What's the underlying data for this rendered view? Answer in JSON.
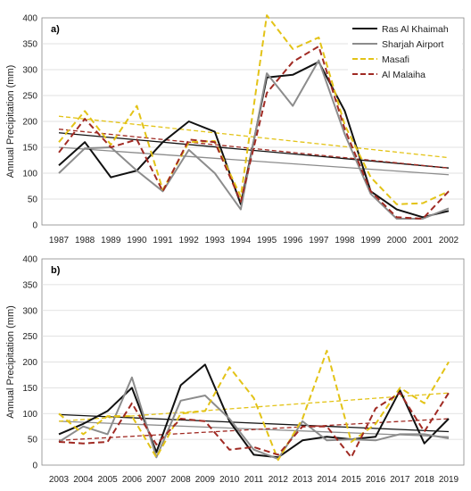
{
  "colors": {
    "Ras Al Khaimah": "#111111",
    "Sharjah Airport": "#8c8c8c",
    "Masafi": "#e3c317",
    "Al Malaiha": "#a02a23",
    "grid": "#d9d9d9",
    "axis": "#888888"
  },
  "styles": {
    "Ras Al Khaimah": "solid",
    "Sharjah Airport": "solid",
    "Masafi": "dashed",
    "Al Malaiha": "dashed"
  },
  "chart_data": [
    {
      "type": "line",
      "panel_label": "a)",
      "ylabel": "Annual Precipitation (mm)",
      "ylim": [
        0,
        400
      ],
      "yticks": [
        0,
        50,
        100,
        150,
        200,
        250,
        300,
        350,
        400
      ],
      "grid": true,
      "legend": "top-right",
      "categories": [
        "1987",
        "1988",
        "1989",
        "1990",
        "1991",
        "1992",
        "1993",
        "1994",
        "1995",
        "1996",
        "1997",
        "1998",
        "1999",
        "2000",
        "2001",
        "2002"
      ],
      "series": [
        {
          "name": "Ras Al Khaimah",
          "values": [
            115,
            160,
            92,
            105,
            160,
            200,
            180,
            40,
            285,
            290,
            315,
            220,
            65,
            30,
            15,
            27
          ],
          "trend": [
            178,
            110
          ]
        },
        {
          "name": "Sharjah Airport",
          "values": [
            100,
            148,
            150,
            105,
            65,
            145,
            100,
            30,
            293,
            230,
            318,
            175,
            60,
            12,
            12,
            32
          ],
          "trend": [
            150,
            97
          ]
        },
        {
          "name": "Masafi",
          "values": [
            160,
            220,
            155,
            230,
            68,
            160,
            162,
            55,
            405,
            340,
            362,
            193,
            92,
            40,
            42,
            65
          ],
          "trend": [
            210,
            130
          ]
        },
        {
          "name": "Al Malaiha",
          "values": [
            140,
            205,
            150,
            165,
            65,
            165,
            160,
            45,
            255,
            315,
            345,
            185,
            65,
            15,
            12,
            65
          ],
          "trend": [
            185,
            110
          ]
        }
      ]
    },
    {
      "type": "line",
      "panel_label": "b)",
      "ylabel": "Annual Precipitation (mm)",
      "ylim": [
        0,
        400
      ],
      "yticks": [
        0,
        50,
        100,
        150,
        200,
        250,
        300,
        350,
        400
      ],
      "grid": true,
      "categories": [
        "2003",
        "2004",
        "2005",
        "2006",
        "2007",
        "2008",
        "2009",
        "2010",
        "2011",
        "2012",
        "2013",
        "2014",
        "2015",
        "2016",
        "2017",
        "2018",
        "2019"
      ],
      "series": [
        {
          "name": "Ras Al Khaimah",
          "values": [
            60,
            80,
            105,
            150,
            25,
            155,
            195,
            85,
            20,
            15,
            48,
            55,
            50,
            55,
            145,
            42,
            90
          ],
          "trend": [
            98,
            65
          ]
        },
        {
          "name": "Sharjah Airport",
          "values": [
            45,
            75,
            60,
            170,
            15,
            125,
            135,
            90,
            30,
            12,
            85,
            48,
            50,
            48,
            60,
            60,
            52
          ],
          "trend": [
            85,
            55
          ]
        },
        {
          "name": "Masafi",
          "values": [
            100,
            60,
            95,
            95,
            15,
            100,
            105,
            190,
            130,
            10,
            90,
            222,
            45,
            80,
            150,
            120,
            200
          ],
          "trend": [
            85,
            140
          ]
        },
        {
          "name": "Al Malaiha",
          "values": [
            45,
            42,
            45,
            120,
            40,
            90,
            85,
            30,
            35,
            20,
            75,
            75,
            15,
            110,
            140,
            65,
            140
          ],
          "trend": [
            48,
            90
          ]
        }
      ]
    }
  ]
}
